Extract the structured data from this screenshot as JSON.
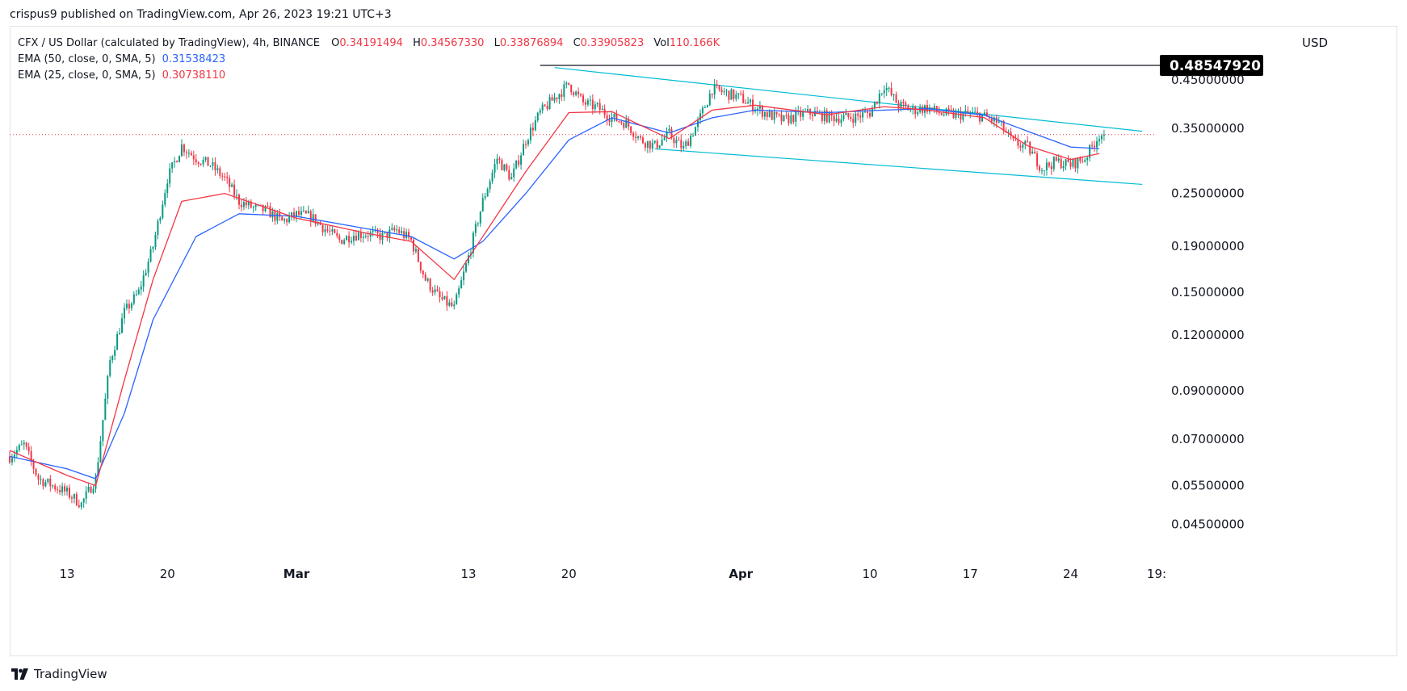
{
  "header": {
    "publish_line": "crispus9 published on TradingView.com, Apr 26, 2023 19:21 UTC+3"
  },
  "legend": {
    "symbol": "CFX / US Dollar (calculated by TradingView), 4h, BINANCE",
    "o_label": "O",
    "o": "0.34191494",
    "h_label": "H",
    "h": "0.34567330",
    "l_label": "L",
    "l": "0.33876894",
    "c_label": "C",
    "c": "0.33905823",
    "vol_label": "Vol",
    "vol": "110.166K",
    "ema50_label": "EMA (50, close, 0, SMA, 5)",
    "ema50_value": "0.31538423",
    "ema25_label": "EMA (25, close, 0, SMA, 5)",
    "ema25_value": "0.30738110"
  },
  "currency": "USD",
  "footer": {
    "brand": "TradingView"
  },
  "colors": {
    "up": "#089981",
    "down": "#f23645",
    "ema50": "#2962ff",
    "ema25": "#f23645",
    "channel": "#00bcd4",
    "resistance": "#131722",
    "last_price_line": "#f23645"
  },
  "chart_data": {
    "type": "candlestick",
    "y_scale": "log",
    "ylim": [
      0.038,
      0.53
    ],
    "y_ticks": [
      {
        "value": 0.45,
        "label": "0.45000000"
      },
      {
        "value": 0.35,
        "label": "0.35000000"
      },
      {
        "value": 0.25,
        "label": "0.25000000"
      },
      {
        "value": 0.19,
        "label": "0.19000000"
      },
      {
        "value": 0.15,
        "label": "0.15000000"
      },
      {
        "value": 0.12,
        "label": "0.12000000"
      },
      {
        "value": 0.09,
        "label": "0.09000000"
      },
      {
        "value": 0.07,
        "label": "0.07000000"
      },
      {
        "value": 0.055,
        "label": "0.05500000"
      },
      {
        "value": 0.045,
        "label": "0.04500000"
      }
    ],
    "x_range": [
      "2023-02-09",
      "2023-04-30"
    ],
    "x_ticks": [
      {
        "date": "2023-02-13",
        "label": "13",
        "bold": false
      },
      {
        "date": "2023-02-20",
        "label": "20",
        "bold": false
      },
      {
        "date": "2023-03-01",
        "label": "Mar",
        "bold": true
      },
      {
        "date": "2023-03-13",
        "label": "13",
        "bold": false
      },
      {
        "date": "2023-03-20",
        "label": "20",
        "bold": false
      },
      {
        "date": "2023-04-01",
        "label": "Apr",
        "bold": true
      },
      {
        "date": "2023-04-10",
        "label": "10",
        "bold": false
      },
      {
        "date": "2023-04-17",
        "label": "17",
        "bold": false
      },
      {
        "date": "2023-04-24",
        "label": "24",
        "bold": false
      },
      {
        "date": "2023-04-30",
        "label": "19:",
        "bold": false
      }
    ],
    "price_path": [
      [
        "2023-02-09",
        0.064
      ],
      [
        "2023-02-10",
        0.068
      ],
      [
        "2023-02-11",
        0.057
      ],
      [
        "2023-02-12",
        0.055
      ],
      [
        "2023-02-13",
        0.053
      ],
      [
        "2023-02-14",
        0.05
      ],
      [
        "2023-02-15",
        0.057
      ],
      [
        "2023-02-16",
        0.105
      ],
      [
        "2023-02-17",
        0.135
      ],
      [
        "2023-02-18",
        0.15
      ],
      [
        "2023-02-19",
        0.19
      ],
      [
        "2023-02-20",
        0.27
      ],
      [
        "2023-02-21",
        0.32
      ],
      [
        "2023-02-22",
        0.3
      ],
      [
        "2023-02-23",
        0.29
      ],
      [
        "2023-02-24",
        0.27
      ],
      [
        "2023-02-25",
        0.24
      ],
      [
        "2023-02-26",
        0.232
      ],
      [
        "2023-02-27",
        0.228
      ],
      [
        "2023-02-28",
        0.216
      ],
      [
        "2023-03-01",
        0.224
      ],
      [
        "2023-03-02",
        0.222
      ],
      [
        "2023-03-03",
        0.208
      ],
      [
        "2023-03-04",
        0.196
      ],
      [
        "2023-03-05",
        0.202
      ],
      [
        "2023-03-06",
        0.203
      ],
      [
        "2023-03-07",
        0.2
      ],
      [
        "2023-03-08",
        0.207
      ],
      [
        "2023-03-09",
        0.196
      ],
      [
        "2023-03-10",
        0.16
      ],
      [
        "2023-03-11",
        0.145
      ],
      [
        "2023-03-12",
        0.138
      ],
      [
        "2023-03-13",
        0.18
      ],
      [
        "2023-03-14",
        0.24
      ],
      [
        "2023-03-15",
        0.3
      ],
      [
        "2023-03-16",
        0.27
      ],
      [
        "2023-03-17",
        0.33
      ],
      [
        "2023-03-18",
        0.38
      ],
      [
        "2023-03-19",
        0.41
      ],
      [
        "2023-03-20",
        0.44
      ],
      [
        "2023-03-21",
        0.4
      ],
      [
        "2023-03-22",
        0.39
      ],
      [
        "2023-03-23",
        0.37
      ],
      [
        "2023-03-24",
        0.36
      ],
      [
        "2023-03-25",
        0.33
      ],
      [
        "2023-03-26",
        0.32
      ],
      [
        "2023-03-27",
        0.34
      ],
      [
        "2023-03-28",
        0.315
      ],
      [
        "2023-03-29",
        0.36
      ],
      [
        "2023-03-30",
        0.43
      ],
      [
        "2023-03-31",
        0.42
      ],
      [
        "2023-04-01",
        0.41
      ],
      [
        "2023-04-02",
        0.39
      ],
      [
        "2023-04-03",
        0.375
      ],
      [
        "2023-04-04",
        0.365
      ],
      [
        "2023-04-05",
        0.375
      ],
      [
        "2023-04-06",
        0.38
      ],
      [
        "2023-04-07",
        0.372
      ],
      [
        "2023-04-08",
        0.37
      ],
      [
        "2023-04-09",
        0.372
      ],
      [
        "2023-04-10",
        0.38
      ],
      [
        "2023-04-11",
        0.438
      ],
      [
        "2023-04-12",
        0.395
      ],
      [
        "2023-04-13",
        0.385
      ],
      [
        "2023-04-14",
        0.39
      ],
      [
        "2023-04-15",
        0.378
      ],
      [
        "2023-04-16",
        0.375
      ],
      [
        "2023-04-17",
        0.378
      ],
      [
        "2023-04-18",
        0.372
      ],
      [
        "2023-04-19",
        0.36
      ],
      [
        "2023-04-20",
        0.325
      ],
      [
        "2023-04-21",
        0.318
      ],
      [
        "2023-04-22",
        0.285
      ],
      [
        "2023-04-23",
        0.295
      ],
      [
        "2023-04-24",
        0.29
      ],
      [
        "2023-04-25",
        0.3
      ],
      [
        "2023-04-26",
        0.339
      ]
    ],
    "ema50_path": [
      [
        "2023-02-09",
        0.064
      ],
      [
        "2023-02-13",
        0.06
      ],
      [
        "2023-02-15",
        0.057
      ],
      [
        "2023-02-17",
        0.08
      ],
      [
        "2023-02-19",
        0.13
      ],
      [
        "2023-02-22",
        0.2
      ],
      [
        "2023-02-25",
        0.225
      ],
      [
        "2023-03-01",
        0.222
      ],
      [
        "2023-03-06",
        0.208
      ],
      [
        "2023-03-09",
        0.2
      ],
      [
        "2023-03-12",
        0.178
      ],
      [
        "2023-03-14",
        0.195
      ],
      [
        "2023-03-17",
        0.25
      ],
      [
        "2023-03-20",
        0.33
      ],
      [
        "2023-03-23",
        0.37
      ],
      [
        "2023-03-27",
        0.342
      ],
      [
        "2023-03-30",
        0.37
      ],
      [
        "2023-04-02",
        0.385
      ],
      [
        "2023-04-07",
        0.38
      ],
      [
        "2023-04-11",
        0.385
      ],
      [
        "2023-04-14",
        0.388
      ],
      [
        "2023-04-18",
        0.375
      ],
      [
        "2023-04-21",
        0.345
      ],
      [
        "2023-04-24",
        0.318
      ],
      [
        "2023-04-26",
        0.3154
      ]
    ],
    "ema25_path": [
      [
        "2023-02-09",
        0.066
      ],
      [
        "2023-02-13",
        0.058
      ],
      [
        "2023-02-15",
        0.055
      ],
      [
        "2023-02-17",
        0.095
      ],
      [
        "2023-02-19",
        0.16
      ],
      [
        "2023-02-21",
        0.24
      ],
      [
        "2023-02-24",
        0.25
      ],
      [
        "2023-03-01",
        0.22
      ],
      [
        "2023-03-06",
        0.203
      ],
      [
        "2023-03-09",
        0.195
      ],
      [
        "2023-03-12",
        0.16
      ],
      [
        "2023-03-14",
        0.2
      ],
      [
        "2023-03-17",
        0.28
      ],
      [
        "2023-03-20",
        0.38
      ],
      [
        "2023-03-23",
        0.382
      ],
      [
        "2023-03-27",
        0.332
      ],
      [
        "2023-03-30",
        0.385
      ],
      [
        "2023-04-02",
        0.395
      ],
      [
        "2023-04-07",
        0.376
      ],
      [
        "2023-04-11",
        0.392
      ],
      [
        "2023-04-14",
        0.385
      ],
      [
        "2023-04-18",
        0.37
      ],
      [
        "2023-04-21",
        0.32
      ],
      [
        "2023-04-24",
        0.298
      ],
      [
        "2023-04-26",
        0.3074
      ]
    ],
    "resistance_line": {
      "from_date": "2023-03-18",
      "price": 0.4854792,
      "label": "0.48547920"
    },
    "channel_upper": {
      "from": [
        "2023-03-19",
        0.48
      ],
      "to": [
        "2023-04-29",
        0.345
      ]
    },
    "channel_lower": {
      "from": [
        "2023-03-26",
        0.315
      ],
      "to": [
        "2023-04-29",
        0.262
      ]
    },
    "last_price": 0.33905823
  }
}
